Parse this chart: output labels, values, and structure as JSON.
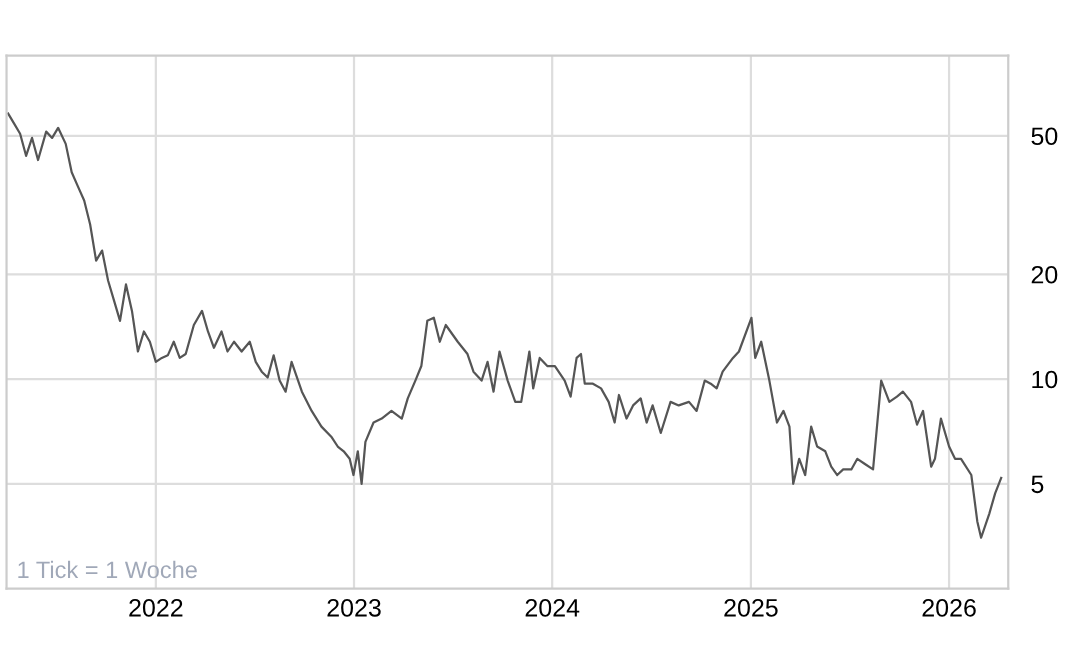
{
  "chart_data": {
    "type": "line",
    "log": "y",
    "grid": true,
    "legend": false,
    "marker": "none",
    "line_style": "solid",
    "annotations": [
      "1 Tick = 1 Woche"
    ],
    "xlim": [
      "2021-04-01",
      "2026-04-20"
    ],
    "xticks": [
      {
        "value": "2022-01-01",
        "label": "2022"
      },
      {
        "value": "2023-01-01",
        "label": "2023"
      },
      {
        "value": "2024-01-01",
        "label": "2024"
      },
      {
        "value": "2025-01-01",
        "label": "2025"
      },
      {
        "value": "2026-01-01",
        "label": "2026"
      }
    ],
    "ylim": [
      2.5,
      85
    ],
    "yticks": [
      5,
      10,
      20,
      50
    ],
    "series": [
      {
        "color": "#555555",
        "x": [
          "2021-04-04",
          "2021-04-15",
          "2021-04-26",
          "2021-05-07",
          "2021-05-18",
          "2021-05-29",
          "2021-06-13",
          "2021-06-24",
          "2021-07-05",
          "2021-07-19",
          "2021-07-30",
          "2021-08-10",
          "2021-08-22",
          "2021-09-02",
          "2021-09-13",
          "2021-09-24",
          "2021-10-05",
          "2021-10-16",
          "2021-10-27",
          "2021-11-07",
          "2021-11-18",
          "2021-11-29",
          "2021-12-10",
          "2021-12-21",
          "2022-01-01",
          "2022-01-12",
          "2022-01-23",
          "2022-02-03",
          "2022-02-14",
          "2022-02-25",
          "2022-03-12",
          "2022-03-27",
          "2022-04-07",
          "2022-04-18",
          "2022-05-02",
          "2022-05-13",
          "2022-05-25",
          "2022-06-08",
          "2022-06-23",
          "2022-07-04",
          "2022-07-15",
          "2022-07-26",
          "2022-08-06",
          "2022-08-17",
          "2022-08-28",
          "2022-09-08",
          "2022-09-27",
          "2022-10-15",
          "2022-11-02",
          "2022-11-21",
          "2022-12-02",
          "2022-12-13",
          "2022-12-24",
          "2022-12-31",
          "2023-01-08",
          "2023-01-15",
          "2023-01-22",
          "2023-02-06",
          "2023-02-21",
          "2023-03-11",
          "2023-03-30",
          "2023-04-10",
          "2023-04-24",
          "2023-05-05",
          "2023-05-16",
          "2023-05-28",
          "2023-06-08",
          "2023-06-19",
          "2023-07-11",
          "2023-07-29",
          "2023-08-09",
          "2023-08-24",
          "2023-09-04",
          "2023-09-15",
          "2023-09-26",
          "2023-10-11",
          "2023-10-25",
          "2023-11-05",
          "2023-11-20",
          "2023-11-27",
          "2023-12-09",
          "2023-12-23",
          "2024-01-06",
          "2024-01-24",
          "2024-02-04",
          "2024-02-15",
          "2024-02-23",
          "2024-03-01",
          "2024-03-16",
          "2024-03-31",
          "2024-04-14",
          "2024-04-25",
          "2024-05-03",
          "2024-05-17",
          "2024-05-29",
          "2024-06-12",
          "2024-06-23",
          "2024-07-04",
          "2024-07-19",
          "2024-08-06",
          "2024-08-21",
          "2024-09-09",
          "2024-09-23",
          "2024-10-08",
          "2024-10-19",
          "2024-10-30",
          "2024-11-10",
          "2024-11-29",
          "2024-12-10",
          "2025-01-02",
          "2025-01-09",
          "2025-01-20",
          "2025-02-04",
          "2025-02-18",
          "2025-03-02",
          "2025-03-13",
          "2025-03-20",
          "2025-03-31",
          "2025-04-11",
          "2025-04-22",
          "2025-05-03",
          "2025-05-18",
          "2025-05-29",
          "2025-06-09",
          "2025-06-20",
          "2025-07-05",
          "2025-07-16",
          "2025-07-30",
          "2025-08-14",
          "2025-08-29",
          "2025-09-13",
          "2025-09-27",
          "2025-10-08",
          "2025-10-23",
          "2025-11-03",
          "2025-11-14",
          "2025-11-29",
          "2025-12-06",
          "2025-12-17",
          "2026-01-01",
          "2026-01-12",
          "2026-01-23",
          "2026-02-11",
          "2026-02-22",
          "2026-03-01",
          "2026-03-16",
          "2026-03-27",
          "2026-04-07"
        ],
        "values": [
          57.9,
          54.2,
          50.7,
          43.8,
          49.3,
          42.6,
          51.4,
          49.3,
          52.7,
          47.4,
          39.3,
          35.9,
          32.6,
          27.8,
          21.9,
          23.4,
          19.2,
          16.8,
          14.7,
          18.7,
          15.7,
          12.0,
          13.7,
          12.8,
          11.2,
          11.5,
          11.7,
          12.8,
          11.5,
          11.8,
          14.3,
          15.7,
          13.7,
          12.3,
          13.7,
          12.0,
          12.8,
          12.0,
          12.8,
          11.2,
          10.5,
          10.1,
          11.7,
          9.9,
          9.2,
          11.2,
          9.2,
          8.1,
          7.3,
          6.8,
          6.4,
          6.2,
          5.9,
          5.3,
          6.2,
          5.0,
          6.6,
          7.5,
          7.7,
          8.1,
          7.7,
          8.8,
          9.9,
          10.9,
          14.7,
          15.0,
          12.8,
          14.3,
          12.8,
          11.8,
          10.5,
          9.9,
          11.2,
          9.2,
          12.0,
          9.9,
          8.6,
          8.6,
          12.0,
          9.4,
          11.5,
          10.9,
          10.9,
          9.9,
          8.9,
          11.5,
          11.8,
          9.7,
          9.7,
          9.4,
          8.6,
          7.5,
          9.0,
          7.7,
          8.4,
          8.8,
          7.5,
          8.4,
          7.0,
          8.6,
          8.4,
          8.6,
          8.1,
          9.9,
          9.7,
          9.4,
          10.5,
          11.5,
          12.0,
          15.0,
          11.5,
          12.8,
          9.9,
          7.5,
          8.1,
          7.3,
          5.0,
          5.9,
          5.3,
          7.3,
          6.4,
          6.2,
          5.6,
          5.3,
          5.5,
          5.5,
          5.9,
          5.7,
          5.5,
          9.9,
          8.6,
          8.9,
          9.2,
          8.6,
          7.4,
          8.1,
          5.6,
          5.9,
          7.7,
          6.4,
          5.9,
          5.9,
          5.3,
          3.9,
          3.5,
          4.1,
          4.7,
          5.2
        ]
      }
    ]
  }
}
